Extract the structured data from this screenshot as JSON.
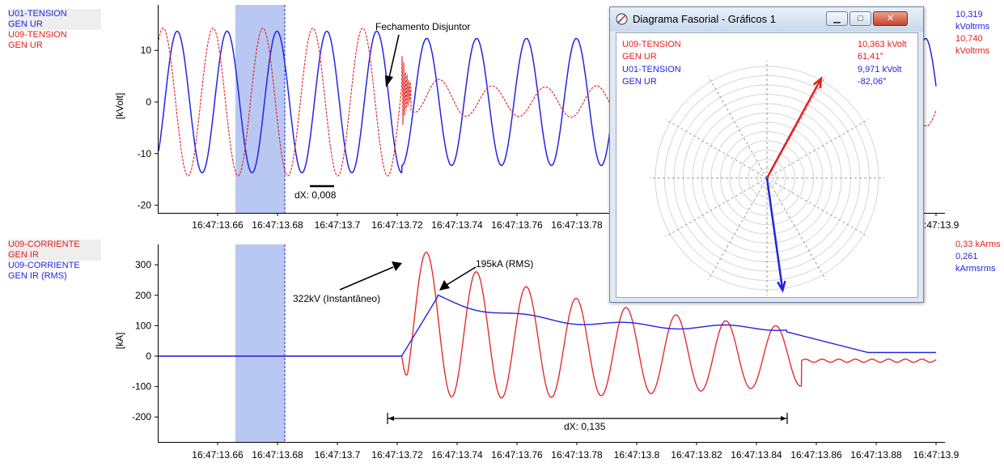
{
  "top_legend": [
    {
      "line1": "U01-TENSION",
      "line2": "GEN UR",
      "color": "#2323e6"
    },
    {
      "line1": "U09-TENSION",
      "line2": "GEN UR",
      "color": "#e61e1e"
    }
  ],
  "top_right_values": [
    {
      "value": "10,319",
      "unit": "kVoltrms",
      "color": "#2323e6"
    },
    {
      "value": "10,740",
      "unit": "kVoltrms",
      "color": "#e61e1e"
    }
  ],
  "bottom_legend": [
    {
      "line1": "U09-CORRIENTE",
      "line2": "GEN IR",
      "color": "#e61e1e"
    },
    {
      "line1": "U09-CORRIENTE",
      "line2": "GEN IR (RMS)",
      "color": "#2323e6"
    }
  ],
  "bottom_right_values": [
    {
      "value": "0,33 kArms",
      "color": "#e61e1e"
    },
    {
      "value": "0,261",
      "color": "#2323e6"
    },
    {
      "value": "kArmsrms",
      "color": "#2323e6"
    }
  ],
  "x_ticks": [
    "16:47:13.66",
    "16:47:13.68",
    "16:47:13.7",
    "16:47:13.72",
    "16:47:13.74",
    "16:47:13.76",
    "16:47:13.78",
    "16:47:13.8",
    "16:47:13.82",
    "16:47:13.84",
    "16:47:13.86",
    "16:47:13.88",
    "16:47:13.9"
  ],
  "top_axis_label": "[kVolt]",
  "bottom_axis_label": "[kA]",
  "top_y_ticks": [
    "10",
    "0",
    "-10",
    "-20"
  ],
  "bottom_y_ticks": [
    "300",
    "200",
    "100",
    "0",
    "-100",
    "-200"
  ],
  "annotations": {
    "fechamento": "Fechamento Disjuntor",
    "dx_top": "dX: 0,008",
    "peak_inst": "322kV (Instantâneo)",
    "peak_rms": "195kA (RMS)",
    "dx_bottom": "dX: 0,135"
  },
  "phasor": {
    "title": "Diagrama Fasorial - Gráficos 1",
    "buttons": {
      "minimize": "▁",
      "maximize": "□",
      "close": "✕"
    },
    "entries": [
      {
        "line1": "U09-TENSION",
        "line2": "GEN UR",
        "magnitude": "10,363 kVolt",
        "angle_text": "61,41°",
        "angle_deg": 61.41,
        "color": "#e61e1e"
      },
      {
        "line1": "U01-TENSION",
        "line2": "GEN UR",
        "magnitude": "9,971 kVolt",
        "angle_text": "-82,06°",
        "angle_deg": -82.06,
        "color": "#2323e6"
      }
    ]
  },
  "colors": {
    "selection": "#b8c8f2",
    "voltage_blue": "#2323e6",
    "voltage_red": "#e61e1e"
  },
  "chart_data": [
    {
      "type": "line",
      "title": "",
      "ylabel": "[kVolt]",
      "x_range": [
        "16:47:13.64",
        "16:47:13.9"
      ],
      "ylim": [
        -21,
        16
      ],
      "series": [
        {
          "name": "U01-TENSION GEN UR",
          "color": "#2323e6",
          "desc_peak": 13.7
        },
        {
          "name": "U09-TENSION GEN UR",
          "color": "#e61e1e",
          "desc_peak": 14.3
        }
      ]
    },
    {
      "type": "line",
      "title": "",
      "ylabel": "[kA]",
      "x_range": [
        "16:47:13.64",
        "16:47:13.9"
      ],
      "ylim": [
        -270,
        340
      ],
      "series": [
        {
          "name": "U09-CORRIENTE GEN IR",
          "color": "#e61e1e",
          "peak": 322
        },
        {
          "name": "U09-CORRIENTE GEN IR (RMS)",
          "color": "#2323e6",
          "peak": 195
        }
      ]
    }
  ]
}
